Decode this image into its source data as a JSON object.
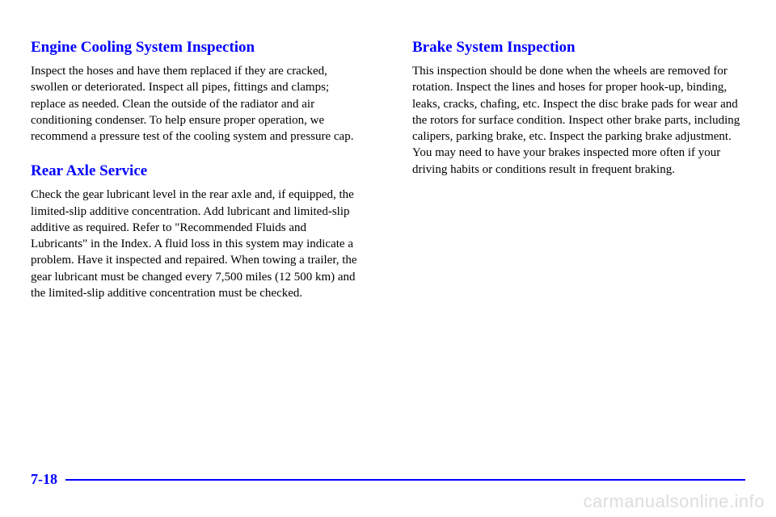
{
  "left": {
    "heading1": "Engine Cooling System Inspection",
    "body1": "Inspect the hoses and have them replaced if they are cracked, swollen or deteriorated. Inspect all pipes, fittings and clamps; replace as needed. Clean the outside of the radiator and air conditioning condenser. To help ensure proper operation, we recommend a pressure test of the cooling system and pressure cap.",
    "heading2": "Rear Axle Service",
    "body2": "Check the gear lubricant level in the rear axle and, if equipped, the limited-slip additive concentration. Add lubricant and limited-slip additive as required. Refer to \"Recommended Fluids and Lubricants\" in the Index. A fluid loss in this system may indicate a problem. Have it inspected and repaired. When towing a trailer, the gear lubricant must be changed every 7,500 miles (12 500 km) and the limited-slip additive concentration must be checked."
  },
  "right": {
    "heading1": "Brake System Inspection",
    "body1": "This inspection should be done when the wheels are removed for rotation. Inspect the lines and hoses for proper hook-up, binding, leaks, cracks, chafing, etc. Inspect the disc brake pads for wear and the rotors for surface condition. Inspect other brake parts, including calipers, parking brake, etc. Inspect the parking brake adjustment. You may need to have your brakes inspected more often if your driving habits or conditions result in frequent braking."
  },
  "pageNumber": "7-18",
  "watermark": "carmanualsonline.info",
  "colors": {
    "heading": "#0000ff",
    "body": "#000000",
    "line": "#0000ff",
    "watermark": "#dddddd",
    "background": "#ffffff"
  },
  "typography": {
    "heading_fontsize": 19,
    "body_fontsize": 15,
    "pagenum_fontsize": 18,
    "watermark_fontsize": 22
  }
}
